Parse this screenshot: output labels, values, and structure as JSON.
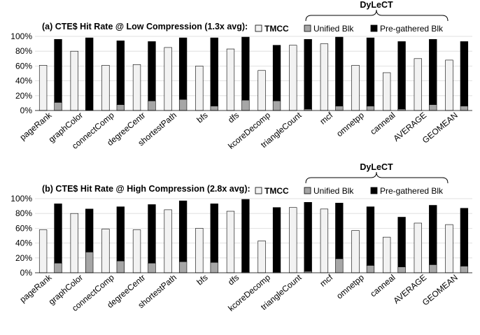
{
  "chart_data": [
    {
      "type": "bar",
      "stacked_series": [
        "Unified Blk",
        "Pre-gathered Blk"
      ],
      "title": "(a) CTE$ Hit Rate @ Low Compression (1.3x avg):",
      "annotation": "DyLeCT",
      "categories": [
        "pageRank",
        "graphColor",
        "connectComp",
        "degreeCentr",
        "shortestPath",
        "bfs",
        "dfs",
        "kcoreDecomp",
        "triangleCount",
        "mcf",
        "omnetpp",
        "canneal",
        "AVERAGE",
        "GEOMEAN"
      ],
      "series": [
        {
          "name": "TMCC",
          "color": "#f2f2f2",
          "values": [
            61,
            80,
            61,
            62,
            85,
            60,
            83,
            54,
            88,
            90,
            61,
            51,
            70,
            68
          ]
        },
        {
          "name": "Unified Blk",
          "color": "#a6a6a6",
          "values": [
            11,
            0,
            8,
            13,
            15,
            6,
            14,
            13,
            2,
            6,
            6,
            2,
            8,
            6
          ]
        },
        {
          "name": "Pre-gathered Blk",
          "color": "#000000",
          "values": [
            85,
            98,
            86,
            80,
            83,
            92,
            85,
            75,
            94,
            93,
            92,
            91,
            88,
            87
          ]
        }
      ],
      "ylim": [
        0,
        100
      ],
      "yticks": [
        {
          "value": 0,
          "label": "0%"
        },
        {
          "value": 20,
          "label": "20%"
        },
        {
          "value": 40,
          "label": "40%"
        },
        {
          "value": 60,
          "label": "60%"
        },
        {
          "value": 80,
          "label": "80%"
        },
        {
          "value": 100,
          "label": "100%"
        }
      ]
    },
    {
      "type": "bar",
      "stacked_series": [
        "Unified Blk",
        "Pre-gathered Blk"
      ],
      "title": "(b) CTE$ Hit Rate @ High Compression (2.8x avg):",
      "annotation": "DyLeCT",
      "categories": [
        "pageRank",
        "graphColor",
        "connectComp",
        "degreeCentr",
        "shortestPath",
        "bfs",
        "dfs",
        "kcoreDecomp",
        "triangleCount",
        "mcf",
        "omnetpp",
        "canneal",
        "AVERAGE",
        "GEOMEAN"
      ],
      "series": [
        {
          "name": "TMCC",
          "color": "#f2f2f2",
          "values": [
            58,
            80,
            59,
            58,
            85,
            60,
            83,
            43,
            88,
            86,
            57,
            48,
            67,
            65
          ]
        },
        {
          "name": "Unified Blk",
          "color": "#a6a6a6",
          "values": [
            13,
            28,
            16,
            13,
            15,
            14,
            1,
            1,
            2,
            19,
            10,
            8,
            11,
            9
          ]
        },
        {
          "name": "Pre-gathered Blk",
          "color": "#000000",
          "values": [
            80,
            58,
            73,
            79,
            82,
            79,
            98,
            87,
            93,
            75,
            79,
            67,
            80,
            78
          ]
        }
      ],
      "ylim": [
        0,
        100
      ],
      "yticks": [
        {
          "value": 0,
          "label": "0%"
        },
        {
          "value": 20,
          "label": "20%"
        },
        {
          "value": 40,
          "label": "40%"
        },
        {
          "value": 60,
          "label": "60%"
        },
        {
          "value": 80,
          "label": "80%"
        },
        {
          "value": 100,
          "label": "100%"
        }
      ]
    }
  ]
}
